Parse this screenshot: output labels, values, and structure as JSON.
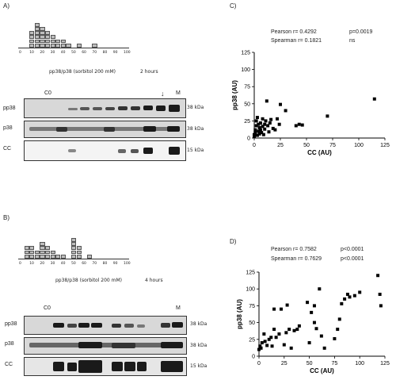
{
  "panels": {
    "A": {
      "letter": "A)",
      "hist_ticks": [
        "0",
        "10",
        "20",
        "30",
        "40",
        "50",
        "60",
        "70",
        "80",
        "90",
        "100"
      ],
      "hist_counts": [
        0,
        0,
        4,
        6,
        5,
        4,
        3,
        2,
        2,
        1,
        0,
        1,
        0,
        0,
        1,
        0,
        0,
        0,
        0,
        0,
        0
      ],
      "caption_left": "pp38/p38 (sorbitol 200 mM)",
      "caption_right": "2 hours",
      "lane_start": "C0",
      "lane_end": "M",
      "arrow": "↓",
      "rows": [
        {
          "label": "pp38",
          "kda": "38 kDa"
        },
        {
          "label": "p38",
          "kda": "38 kDa"
        },
        {
          "label": "CC",
          "kda": "15 kDa"
        }
      ]
    },
    "B": {
      "letter": "B)",
      "hist_ticks": [
        "0",
        "10",
        "20",
        "30",
        "40",
        "50",
        "60",
        "70",
        "80",
        "90",
        "100"
      ],
      "hist_counts": [
        0,
        3,
        3,
        2,
        4,
        3,
        2,
        1,
        1,
        0,
        5,
        3,
        0,
        1,
        0,
        0,
        0,
        0,
        0,
        0,
        0
      ],
      "caption_left": "pp38/p38 (sorbitol 200 mM)",
      "caption_right": "4 hours",
      "lane_start": "C0",
      "lane_end": "M",
      "rows": [
        {
          "label": "pp38",
          "kda": "38 kDa"
        },
        {
          "label": "p38",
          "kda": "38 kDa"
        },
        {
          "label": "CC",
          "kda": "15 kDa"
        }
      ]
    },
    "C": {
      "letter": "C)",
      "pearson": "Pearson r= 0.4292",
      "pearson_p": "p=0.0019",
      "spearman": "Spearman r= 0.1821",
      "spearman_p": "ns"
    },
    "D": {
      "letter": "D)",
      "pearson": "Pearson r= 0.7582",
      "pearson_p": "p<0.0001",
      "spearman": "Spearman r= 0.7629",
      "spearman_p": "p<0.0001"
    }
  },
  "chart_data": [
    {
      "type": "scatter",
      "panel": "C",
      "xlabel": "CC (AU)",
      "ylabel": "pp38 (AU)",
      "xlim": [
        0,
        125
      ],
      "ylim": [
        0,
        125
      ],
      "xticks": [
        0,
        25,
        50,
        75,
        100,
        125
      ],
      "yticks": [
        0,
        25,
        50,
        75,
        100,
        125
      ],
      "points": [
        [
          0,
          2
        ],
        [
          0,
          5
        ],
        [
          1,
          8
        ],
        [
          1,
          12
        ],
        [
          2,
          18
        ],
        [
          2,
          25
        ],
        [
          3,
          30
        ],
        [
          3,
          4
        ],
        [
          4,
          10
        ],
        [
          4,
          20
        ],
        [
          5,
          15
        ],
        [
          5,
          6
        ],
        [
          6,
          22
        ],
        [
          6,
          12
        ],
        [
          7,
          8
        ],
        [
          8,
          17
        ],
        [
          8,
          28
        ],
        [
          9,
          5
        ],
        [
          10,
          20
        ],
        [
          10,
          13
        ],
        [
          11,
          25
        ],
        [
          12,
          54
        ],
        [
          13,
          18
        ],
        [
          14,
          9
        ],
        [
          15,
          22
        ],
        [
          16,
          27
        ],
        [
          18,
          14
        ],
        [
          20,
          12
        ],
        [
          22,
          28
        ],
        [
          24,
          20
        ],
        [
          25,
          49
        ],
        [
          30,
          40
        ],
        [
          40,
          18
        ],
        [
          43,
          20
        ],
        [
          46,
          19
        ],
        [
          70,
          32
        ],
        [
          115,
          57
        ]
      ]
    },
    {
      "type": "scatter",
      "panel": "D",
      "xlabel": "CC (AU)",
      "ylabel": "pp38 (AU)",
      "xlim": [
        0,
        125
      ],
      "ylim": [
        0,
        125
      ],
      "xticks": [
        0,
        25,
        50,
        75,
        100,
        125
      ],
      "yticks": [
        0,
        25,
        50,
        75,
        100,
        125
      ],
      "points": [
        [
          0,
          10
        ],
        [
          1,
          15
        ],
        [
          2,
          12
        ],
        [
          3,
          20
        ],
        [
          5,
          33
        ],
        [
          6,
          22
        ],
        [
          8,
          16
        ],
        [
          10,
          25
        ],
        [
          12,
          28
        ],
        [
          13,
          15
        ],
        [
          15,
          40
        ],
        [
          15,
          70
        ],
        [
          17,
          28
        ],
        [
          20,
          33
        ],
        [
          22,
          70
        ],
        [
          25,
          17
        ],
        [
          27,
          35
        ],
        [
          28,
          76
        ],
        [
          30,
          40
        ],
        [
          32,
          12
        ],
        [
          35,
          38
        ],
        [
          38,
          40
        ],
        [
          40,
          45
        ],
        [
          48,
          80
        ],
        [
          50,
          20
        ],
        [
          52,
          65
        ],
        [
          55,
          50
        ],
        [
          55,
          75
        ],
        [
          57,
          41
        ],
        [
          60,
          100
        ],
        [
          62,
          30
        ],
        [
          65,
          12
        ],
        [
          75,
          26
        ],
        [
          78,
          40
        ],
        [
          80,
          55
        ],
        [
          82,
          78
        ],
        [
          85,
          85
        ],
        [
          88,
          92
        ],
        [
          90,
          88
        ],
        [
          95,
          90
        ],
        [
          100,
          95
        ],
        [
          118,
          120
        ],
        [
          120,
          92
        ],
        [
          121,
          75
        ]
      ]
    }
  ]
}
